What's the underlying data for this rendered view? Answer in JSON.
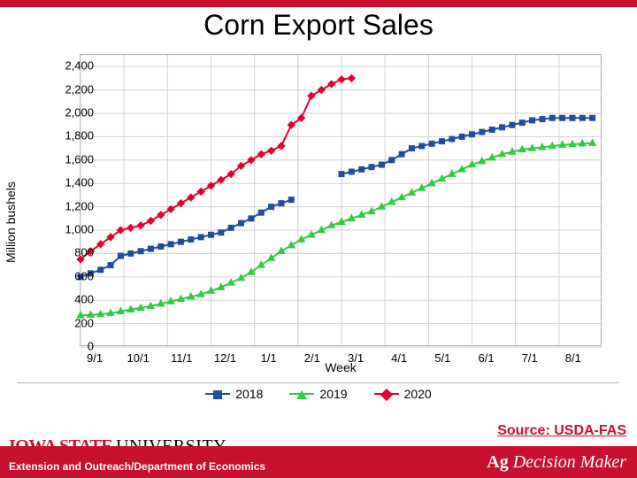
{
  "title": "Corn Export Sales",
  "ylabel": "Million bushels",
  "xlabel": "Week",
  "source": "Source: USDA-FAS",
  "isu_logo_1": "IOWA STATE",
  "isu_logo_2": "UNIVERSITY",
  "extension": "Extension and Outreach/Department of Economics",
  "agdm_1": "Ag",
  "agdm_2": "Decision Maker",
  "chart": {
    "type": "line",
    "background_color": "#ffffff",
    "grid_color": "#d0d0d0",
    "ylim": [
      0,
      2500
    ],
    "ytick_step": 200,
    "yticks": [
      0,
      200,
      400,
      600,
      800,
      1000,
      1200,
      1400,
      1600,
      1800,
      2000,
      2200,
      2400
    ],
    "xticks": [
      "9/1",
      "10/1",
      "11/1",
      "12/1",
      "1/1",
      "2/1",
      "3/1",
      "4/1",
      "5/1",
      "6/1",
      "7/1",
      "8/1"
    ],
    "x_weeks": 52,
    "series": [
      {
        "name": "2018",
        "label": "2018",
        "color": "#1f4e9c",
        "marker": "square",
        "marker_size": 7,
        "line_width": 2,
        "segments": [
          {
            "x": [
              0,
              1,
              2,
              3,
              4,
              5,
              6,
              7,
              8,
              9,
              10,
              11,
              12,
              13,
              14,
              15,
              16,
              17,
              18,
              19,
              20,
              21
            ],
            "y": [
              600,
              630,
              660,
              700,
              780,
              800,
              820,
              840,
              860,
              880,
              900,
              920,
              940,
              960,
              980,
              1020,
              1060,
              1100,
              1150,
              1200,
              1230,
              1260
            ]
          },
          {
            "x": [
              26,
              27,
              28,
              29,
              30,
              31,
              32,
              33,
              34,
              35,
              36,
              37,
              38,
              39,
              40,
              41,
              42,
              43,
              44,
              45,
              46,
              47,
              48,
              49,
              50,
              51
            ],
            "y": [
              1480,
              1500,
              1520,
              1540,
              1560,
              1600,
              1650,
              1700,
              1720,
              1740,
              1760,
              1780,
              1800,
              1820,
              1840,
              1860,
              1880,
              1900,
              1920,
              1940,
              1950,
              1960,
              1960,
              1960,
              1960,
              1960
            ]
          }
        ]
      },
      {
        "name": "2019",
        "label": "2019",
        "color": "#2ecc40",
        "marker": "triangle",
        "marker_size": 8,
        "line_width": 2,
        "segments": [
          {
            "x": [
              0,
              1,
              2,
              3,
              4,
              5,
              6,
              7,
              8,
              9,
              10,
              11,
              12,
              13,
              14,
              15,
              16,
              17,
              18,
              19,
              20,
              21,
              22,
              23,
              24,
              25,
              26,
              27,
              28,
              29,
              30,
              31,
              32,
              33,
              34,
              35,
              36,
              37,
              38,
              39,
              40,
              41,
              42,
              43,
              44,
              45,
              46,
              47,
              48,
              49,
              50,
              51
            ],
            "y": [
              270,
              275,
              280,
              290,
              305,
              320,
              335,
              350,
              370,
              390,
              410,
              430,
              450,
              480,
              510,
              550,
              590,
              640,
              700,
              760,
              820,
              870,
              920,
              960,
              1000,
              1040,
              1070,
              1100,
              1130,
              1160,
              1200,
              1240,
              1280,
              1320,
              1360,
              1400,
              1440,
              1480,
              1520,
              1560,
              1590,
              1620,
              1650,
              1670,
              1690,
              1700,
              1710,
              1720,
              1730,
              1735,
              1740,
              1745
            ]
          }
        ]
      },
      {
        "name": "2020",
        "label": "2020",
        "color": "#e4002b",
        "marker": "diamond",
        "marker_size": 7,
        "line_width": 2,
        "segments": [
          {
            "x": [
              0,
              1,
              2,
              3,
              4,
              5,
              6,
              7,
              8,
              9,
              10,
              11,
              12,
              13,
              14,
              15,
              16,
              17,
              18,
              19,
              20,
              21,
              22,
              23,
              24,
              25,
              26,
              27
            ],
            "y": [
              750,
              820,
              880,
              940,
              1000,
              1020,
              1040,
              1080,
              1130,
              1180,
              1230,
              1280,
              1330,
              1380,
              1430,
              1480,
              1550,
              1600,
              1650,
              1680,
              1720,
              1900,
              1960,
              2150,
              2200,
              2250,
              2290,
              2300
            ]
          }
        ]
      }
    ],
    "legend": [
      {
        "label": "2018",
        "color": "#1f4e9c",
        "marker": "square"
      },
      {
        "label": "2019",
        "color": "#2ecc40",
        "marker": "triangle"
      },
      {
        "label": "2020",
        "color": "#e4002b",
        "marker": "diamond"
      }
    ]
  }
}
